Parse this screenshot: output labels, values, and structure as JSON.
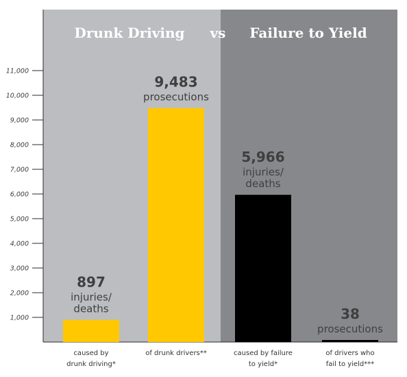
{
  "colors": {
    "left_panel_bg": "#bbbdc0",
    "right_panel_bg": "#87888b",
    "drunk_bar": "#ffc800",
    "yield_bar": "#000000",
    "label_text": "#3f3f3f"
  },
  "chart_data": {
    "type": "bar",
    "title_left": "Drunk Driving",
    "title_vs": "vs",
    "title_right": "Failure to Yield",
    "ylim": [
      0,
      11000
    ],
    "yticks": [
      {
        "value": 1000,
        "label": "1,000"
      },
      {
        "value": 2000,
        "label": "2,000"
      },
      {
        "value": 3000,
        "label": "3,000"
      },
      {
        "value": 4000,
        "label": "4,000"
      },
      {
        "value": 5000,
        "label": "5,000"
      },
      {
        "value": 6000,
        "label": "6,000"
      },
      {
        "value": 7000,
        "label": "7,000"
      },
      {
        "value": 8000,
        "label": "8,000"
      },
      {
        "value": 9000,
        "label": "9,000"
      },
      {
        "value": 10000,
        "label": "10,000"
      },
      {
        "value": 11000,
        "label": "11,000"
      }
    ],
    "bars": [
      {
        "value": 897,
        "value_label": "897",
        "desc": [
          "injuries/",
          "deaths"
        ],
        "category": [
          "caused by",
          "drunk driving*"
        ],
        "group": "drunk"
      },
      {
        "value": 9483,
        "value_label": "9,483",
        "desc": [
          "prosecutions"
        ],
        "category": [
          "of drunk drivers**"
        ],
        "group": "drunk"
      },
      {
        "value": 5966,
        "value_label": "5,966",
        "desc": [
          "injuries/",
          "deaths"
        ],
        "category": [
          "caused by failure",
          "to yield*"
        ],
        "group": "yield"
      },
      {
        "value": 38,
        "value_label": "38",
        "desc": [
          "prosecutions"
        ],
        "category": [
          "of drivers who",
          "fail to yield***"
        ],
        "group": "yield"
      }
    ]
  }
}
